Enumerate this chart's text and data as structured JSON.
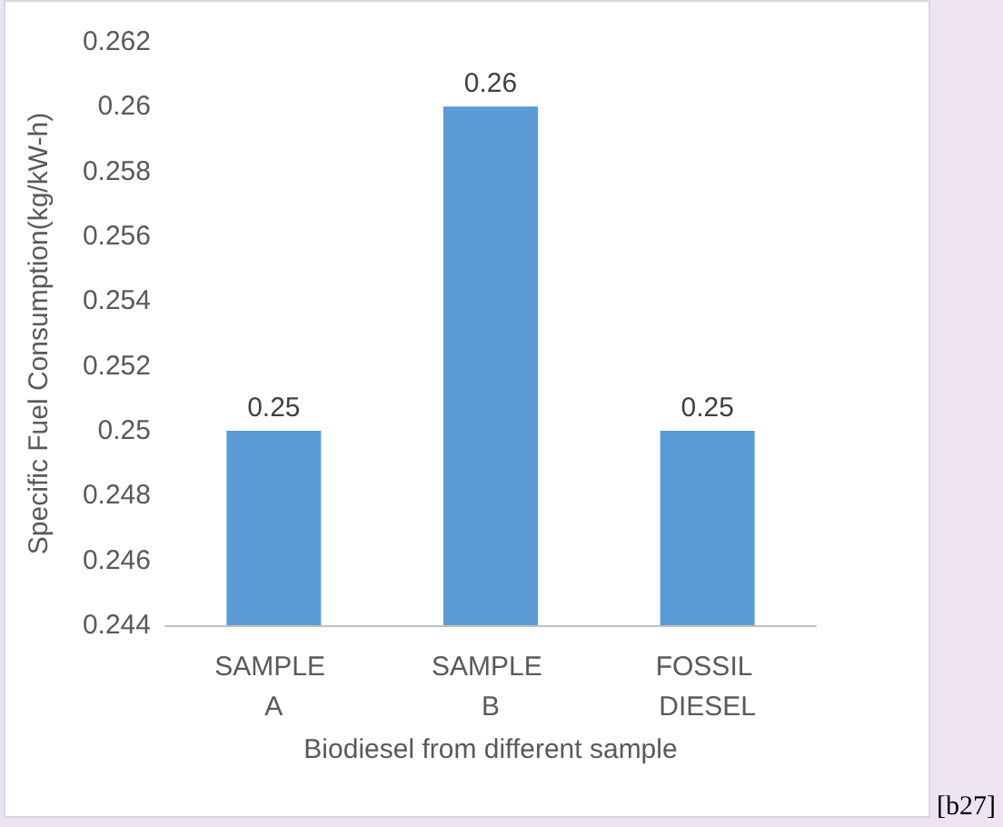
{
  "chart_data": {
    "type": "bar",
    "categories": [
      "SAMPLE A",
      "SAMPLE B",
      "FOSSIL DIESEL"
    ],
    "values": [
      0.25,
      0.26,
      0.25
    ],
    "color": "#5b9bd5",
    "ylim": [
      0.244,
      0.262
    ],
    "yticks": [
      0.244,
      0.246,
      0.248,
      0.25,
      0.252,
      0.254,
      0.256,
      0.258,
      0.26,
      0.262
    ],
    "xlabel": "Biodiesel from different sample",
    "ylabel": "Specific Fuel Consumption(kg/kW-h)",
    "data_labels": true,
    "annotations": [
      "[b27]"
    ]
  }
}
